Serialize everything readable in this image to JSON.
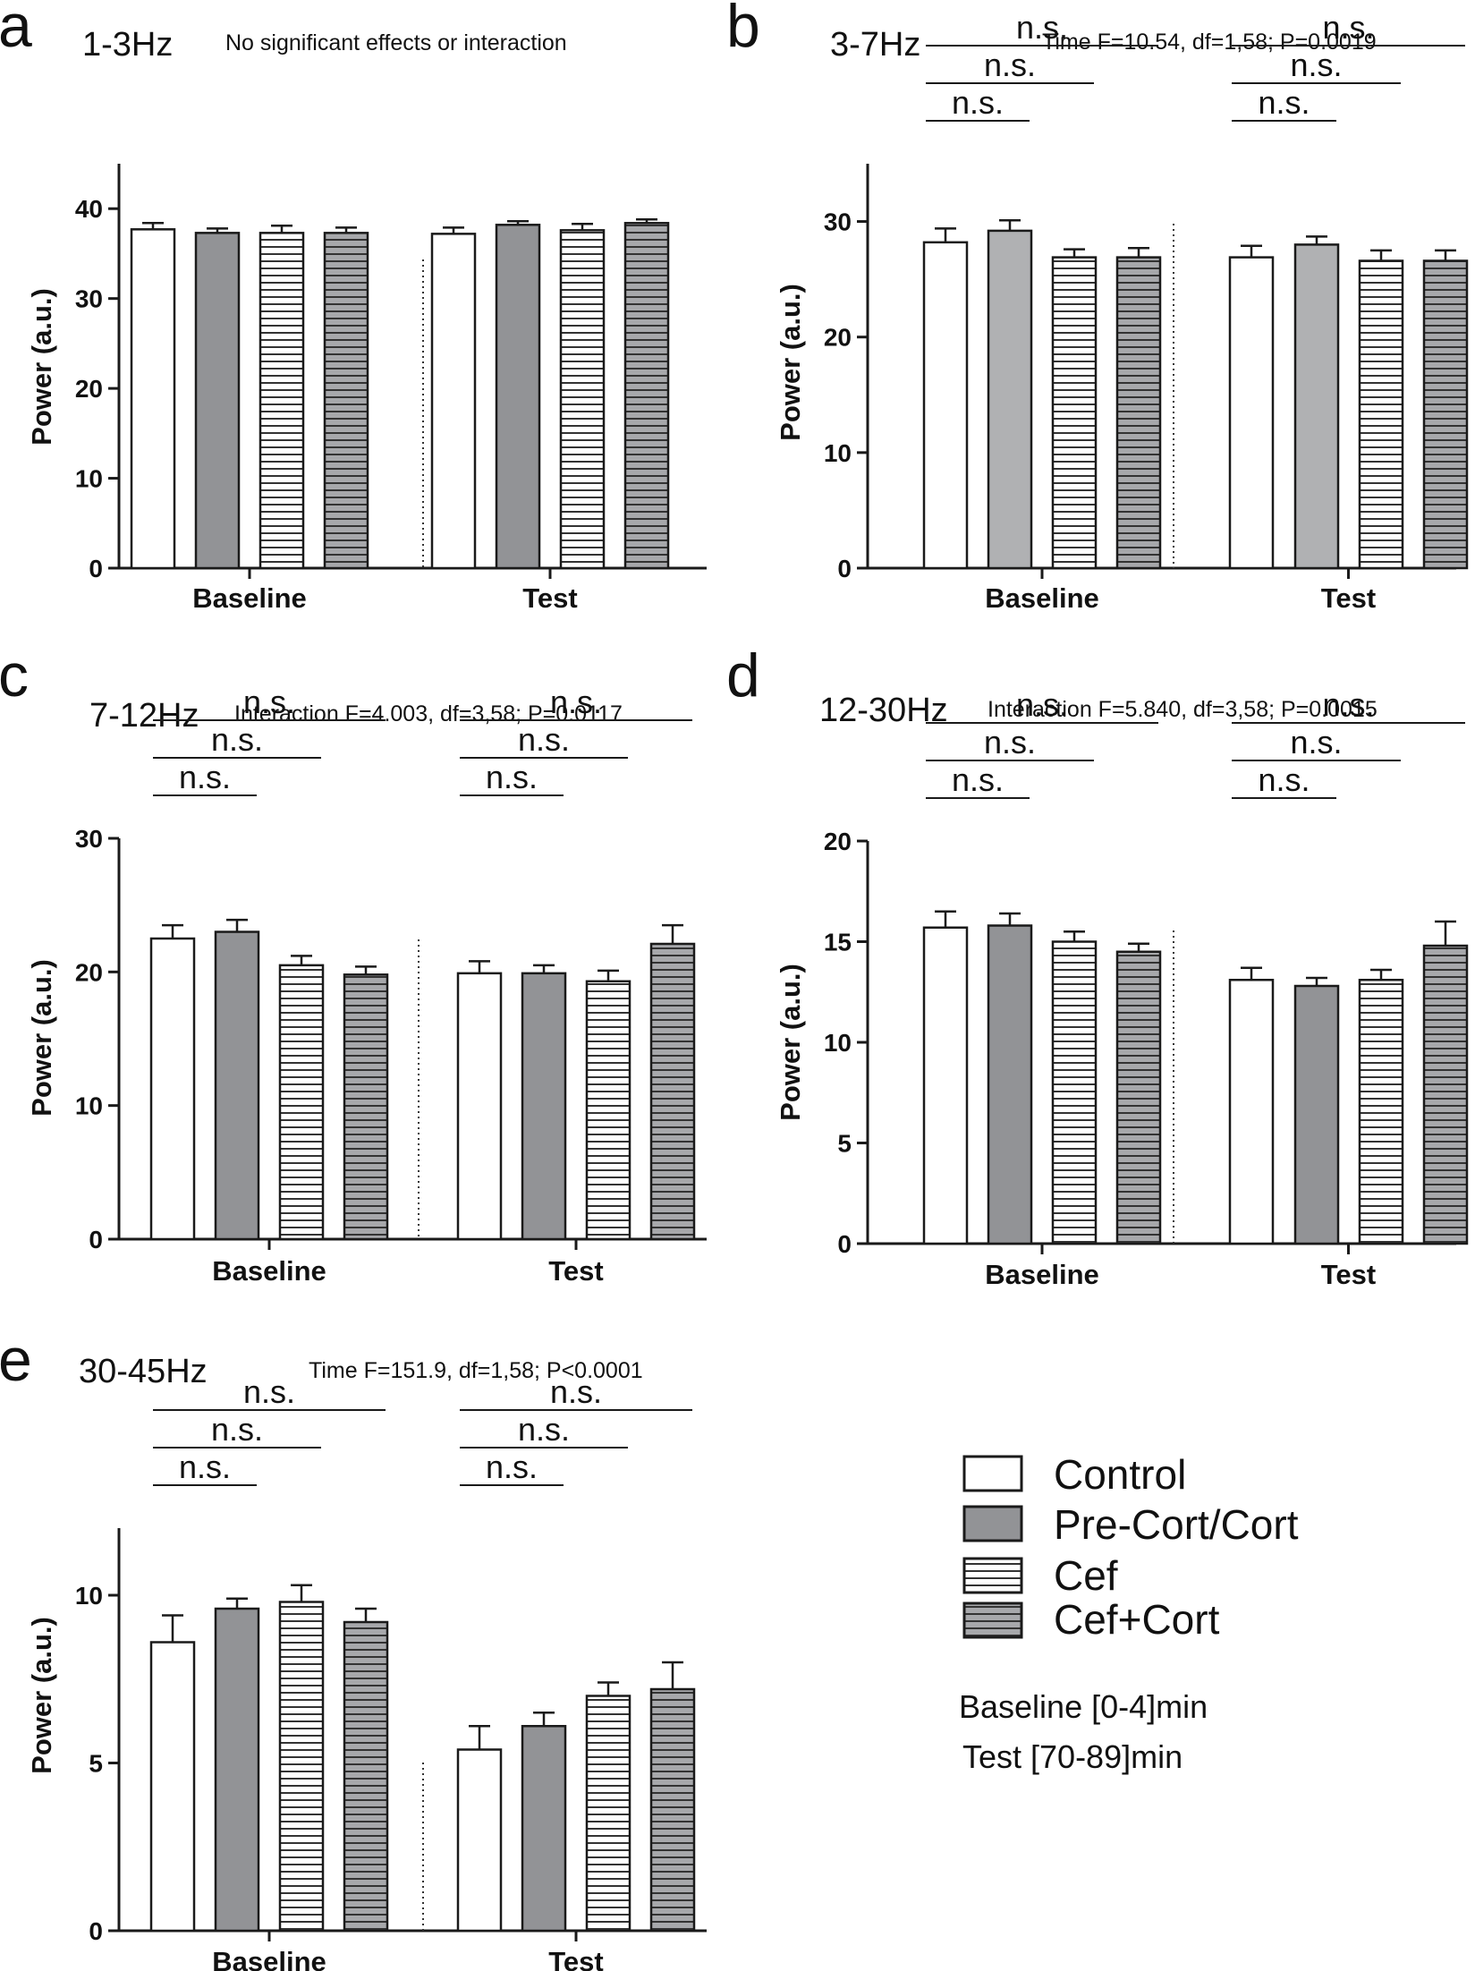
{
  "chart_data": [
    {
      "type": "bar",
      "panel": "a",
      "title": "1-3Hz",
      "subtitle": "No significant effects or interaction",
      "ylabel": "Power (a.u.)",
      "categories": [
        "Baseline",
        "Test"
      ],
      "ylim": [
        0,
        45
      ],
      "yticks": [
        0,
        10,
        20,
        30,
        40
      ],
      "series": [
        {
          "name": "Control",
          "values": [
            37.7,
            37.2
          ],
          "errors": [
            0.7,
            0.7
          ]
        },
        {
          "name": "Pre-Cort/Cort",
          "values": [
            37.3,
            38.2
          ],
          "errors": [
            0.5,
            0.4
          ]
        },
        {
          "name": "Cef",
          "values": [
            37.3,
            37.6
          ],
          "errors": [
            0.8,
            0.7
          ]
        },
        {
          "name": "Cef+Cort",
          "values": [
            37.3,
            38.4
          ],
          "errors": [
            0.6,
            0.4
          ]
        }
      ],
      "comparisons": []
    },
    {
      "type": "bar",
      "panel": "b",
      "title": "3-7Hz",
      "subtitle": "Time F=10.54, df=1,58; P=0.0019",
      "ylabel": "Power (a.u.)",
      "categories": [
        "Baseline",
        "Test"
      ],
      "ylim": [
        0,
        35
      ],
      "yticks": [
        0,
        10,
        20,
        30
      ],
      "series": [
        {
          "name": "Control",
          "values": [
            28.2,
            26.9
          ],
          "errors": [
            1.2,
            1.0
          ]
        },
        {
          "name": "Pre-Cort/Cort",
          "values": [
            29.2,
            28.0
          ],
          "errors": [
            0.9,
            0.7
          ]
        },
        {
          "name": "Cef",
          "values": [
            26.9,
            26.6
          ],
          "errors": [
            0.7,
            0.9
          ]
        },
        {
          "name": "Cef+Cort",
          "values": [
            26.9,
            26.6
          ],
          "errors": [
            0.8,
            0.9
          ]
        }
      ],
      "comparisons": [
        "n.s.",
        "n.s.",
        "n.s."
      ]
    },
    {
      "type": "bar",
      "panel": "c",
      "title": "7-12Hz",
      "subtitle": "Interaction F=4.003, df=3,58; P=0.0117",
      "ylabel": "Power (a.u.)",
      "categories": [
        "Baseline",
        "Test"
      ],
      "ylim": [
        0,
        30
      ],
      "yticks": [
        0,
        10,
        20,
        30
      ],
      "series": [
        {
          "name": "Control",
          "values": [
            22.5,
            19.9
          ],
          "errors": [
            1.0,
            0.9
          ]
        },
        {
          "name": "Pre-Cort/Cort",
          "values": [
            23.0,
            19.9
          ],
          "errors": [
            0.9,
            0.6
          ]
        },
        {
          "name": "Cef",
          "values": [
            20.5,
            19.3
          ],
          "errors": [
            0.7,
            0.8
          ]
        },
        {
          "name": "Cef+Cort",
          "values": [
            19.8,
            22.1
          ],
          "errors": [
            0.6,
            1.4
          ]
        }
      ],
      "comparisons": [
        "n.s.",
        "n.s.",
        "n.s."
      ]
    },
    {
      "type": "bar",
      "panel": "d",
      "title": "12-30Hz",
      "subtitle": "Interaction F=5.840, df=3,58; P=0.0015",
      "ylabel": "Power (a.u.)",
      "categories": [
        "Baseline",
        "Test"
      ],
      "ylim": [
        0,
        20
      ],
      "yticks": [
        0,
        5,
        10,
        15,
        20
      ],
      "series": [
        {
          "name": "Control",
          "values": [
            15.7,
            13.1
          ],
          "errors": [
            0.8,
            0.6
          ]
        },
        {
          "name": "Pre-Cort/Cort",
          "values": [
            15.8,
            12.8
          ],
          "errors": [
            0.6,
            0.4
          ]
        },
        {
          "name": "Cef",
          "values": [
            15.0,
            13.1
          ],
          "errors": [
            0.5,
            0.5
          ]
        },
        {
          "name": "Cef+Cort",
          "values": [
            14.5,
            14.8
          ],
          "errors": [
            0.4,
            1.2
          ]
        }
      ],
      "comparisons": [
        "n.s.",
        "n.s.",
        "n.s."
      ]
    },
    {
      "type": "bar",
      "panel": "e",
      "title": "30-45Hz",
      "subtitle": "Time F=151.9, df=1,58; P<0.0001",
      "ylabel": "Power (a.u.)",
      "categories": [
        "Baseline",
        "Test"
      ],
      "ylim": [
        0,
        12
      ],
      "yticks": [
        0,
        5,
        10
      ],
      "series": [
        {
          "name": "Control",
          "values": [
            8.6,
            5.4
          ],
          "errors": [
            0.8,
            0.7
          ]
        },
        {
          "name": "Pre-Cort/Cort",
          "values": [
            9.6,
            6.1
          ],
          "errors": [
            0.3,
            0.4
          ]
        },
        {
          "name": "Cef",
          "values": [
            9.8,
            7.0
          ],
          "errors": [
            0.5,
            0.4
          ]
        },
        {
          "name": "Cef+Cort",
          "values": [
            9.2,
            7.2
          ],
          "errors": [
            0.4,
            0.8
          ]
        }
      ],
      "comparisons": [
        "n.s.",
        "n.s.",
        "n.s."
      ]
    }
  ],
  "legend": {
    "items": [
      {
        "label": "Control",
        "fill": "white"
      },
      {
        "label": "Pre-Cort/Cort",
        "fill": "gray"
      },
      {
        "label": "Cef",
        "fill": "hatch-white"
      },
      {
        "label": "Cef+Cort",
        "fill": "hatch-gray"
      }
    ],
    "notes": [
      "Baseline [0-4]min",
      "Test [70-89]min"
    ]
  },
  "colors": {
    "gray_fill": "#929396",
    "gray_fill_b": "#b0b1b3",
    "hatch_gray_bg": "#a7a8ab",
    "hatch_line": "#333333",
    "stroke": "#1a1a1a"
  }
}
